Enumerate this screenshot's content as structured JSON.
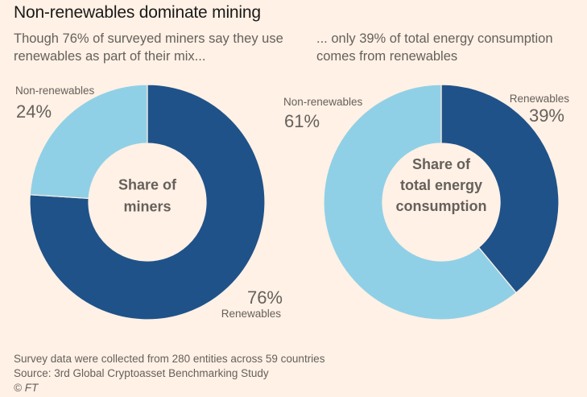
{
  "title": "Non-renewables dominate mining",
  "subtitles": {
    "left": "Though 76% of surveyed miners say they use renewables as part of their mix...",
    "right": "... only 39% of total energy consumption comes from renewables"
  },
  "colors": {
    "background": "#fff1e5",
    "renewables": "#1f5289",
    "non_renewables": "#90d0e6",
    "text": "#66605c"
  },
  "chart_data": [
    {
      "type": "pie",
      "variant": "donut",
      "center_label": [
        "Share of",
        "miners"
      ],
      "slices": [
        {
          "name": "Renewables",
          "value": 76,
          "label": "76%",
          "color": "#1f5289"
        },
        {
          "name": "Non-renewables",
          "value": 24,
          "label": "24%",
          "color": "#90d0e6"
        }
      ],
      "start": "top",
      "direction": "clockwise"
    },
    {
      "type": "pie",
      "variant": "donut",
      "center_label": [
        "Share of",
        "total energy",
        "consumption"
      ],
      "slices": [
        {
          "name": "Renewables",
          "value": 39,
          "label": "39%",
          "color": "#1f5289"
        },
        {
          "name": "Non-renewables",
          "value": 61,
          "label": "61%",
          "color": "#90d0e6"
        }
      ],
      "start": "top",
      "direction": "clockwise"
    }
  ],
  "footer": {
    "note": "Survey data were collected from 280 entities across 59 countries",
    "source": "Source: 3rd Global Cryptoasset Benchmarking Study",
    "copyright": "© FT"
  }
}
